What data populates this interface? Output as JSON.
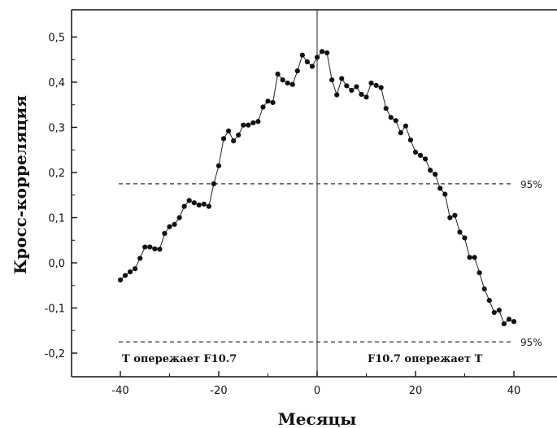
{
  "chart_data": {
    "type": "line",
    "xlabel": "Месяцы",
    "ylabel": "Кросс-корреляция",
    "xlim": [
      -50,
      50
    ],
    "ylim": [
      -0.22,
      0.53
    ],
    "x_ticks": [
      -40,
      -20,
      0,
      20,
      40
    ],
    "x_tick_labels": [
      "-40",
      "-20",
      "0",
      "20",
      "40"
    ],
    "y_ticks": [
      -0.2,
      -0.1,
      0.0,
      0.1,
      0.2,
      0.3,
      0.4,
      0.5
    ],
    "y_tick_labels": [
      "-0,2",
      "-0,1",
      "0,0",
      "0,1",
      "0,2",
      "0,3",
      "0,4",
      "0,5"
    ],
    "reference_lines": [
      {
        "y": 0.175,
        "label": "95%"
      },
      {
        "y": -0.175,
        "label": "95%"
      }
    ],
    "vertical_line_x": 0,
    "annotations": {
      "left": "T опережает F10.7",
      "right": "F10.7 опережает T"
    },
    "series": [
      {
        "x": [
          -40,
          -39,
          -38,
          -37,
          -36,
          -35,
          -34,
          -33,
          -32,
          -31,
          -30,
          -29,
          -28,
          -27,
          -26,
          -25,
          -24,
          -23,
          -22,
          -21,
          -20,
          -19,
          -18,
          -17,
          -16,
          -15,
          -14,
          -13,
          -12,
          -11,
          -10,
          -9,
          -8,
          -7,
          -6,
          -5,
          -4,
          -3,
          -2,
          -1,
          0,
          1,
          2,
          3,
          4,
          5,
          6,
          7,
          8,
          9,
          10,
          11,
          12,
          13,
          14,
          15,
          16,
          17,
          18,
          19,
          20,
          21,
          22,
          23,
          24,
          25,
          26,
          27,
          28,
          29,
          30,
          31,
          32,
          33,
          34,
          35,
          36,
          37,
          38,
          39,
          40
        ],
        "values": [
          -0.038,
          -0.028,
          -0.02,
          -0.013,
          0.01,
          0.035,
          0.035,
          0.031,
          0.03,
          0.065,
          0.08,
          0.085,
          0.1,
          0.125,
          0.138,
          0.133,
          0.128,
          0.13,
          0.125,
          0.175,
          0.215,
          0.275,
          0.292,
          0.27,
          0.283,
          0.305,
          0.305,
          0.31,
          0.313,
          0.345,
          0.358,
          0.355,
          0.418,
          0.405,
          0.398,
          0.395,
          0.425,
          0.46,
          0.445,
          0.435,
          0.455,
          0.468,
          0.465,
          0.405,
          0.372,
          0.408,
          0.392,
          0.382,
          0.39,
          0.373,
          0.367,
          0.398,
          0.393,
          0.388,
          0.342,
          0.322,
          0.315,
          0.288,
          0.303,
          0.272,
          0.245,
          0.238,
          0.23,
          0.205,
          0.196,
          0.165,
          0.152,
          0.1,
          0.105,
          0.068,
          0.055,
          0.012,
          0.012,
          -0.022,
          -0.058,
          -0.083,
          -0.11,
          -0.105,
          -0.135,
          -0.125,
          -0.13
        ]
      }
    ]
  }
}
